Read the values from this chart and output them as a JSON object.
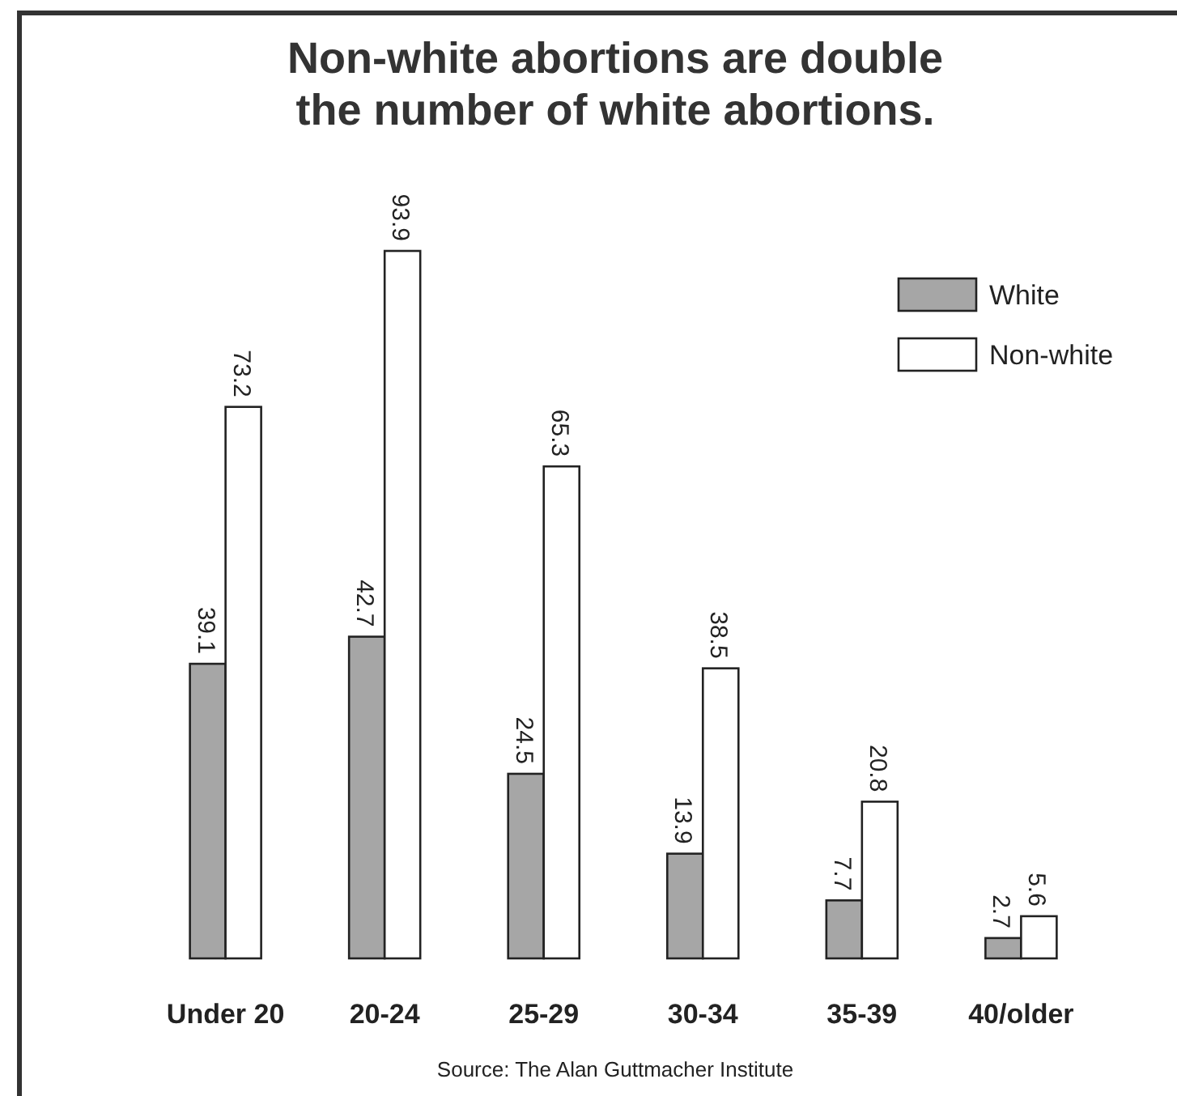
{
  "chart_data": {
    "type": "bar",
    "title": "Non-white abortions are double\nthe number of white abortions.",
    "categories": [
      "Under 20",
      "20-24",
      "25-29",
      "30-34",
      "35-39",
      "40/older"
    ],
    "series": [
      {
        "name": "White",
        "color": "#a6a6a6",
        "values": [
          39.1,
          42.7,
          24.5,
          13.9,
          7.7,
          2.7
        ]
      },
      {
        "name": "Non-white",
        "color": "#ffffff",
        "values": [
          73.2,
          93.9,
          65.3,
          38.5,
          20.8,
          5.6
        ]
      }
    ],
    "data_labels": true,
    "relative": false,
    "legend": "top right",
    "grid": false,
    "annotations": [
      "Source:  The Alan Guttmacher Institute"
    ]
  }
}
